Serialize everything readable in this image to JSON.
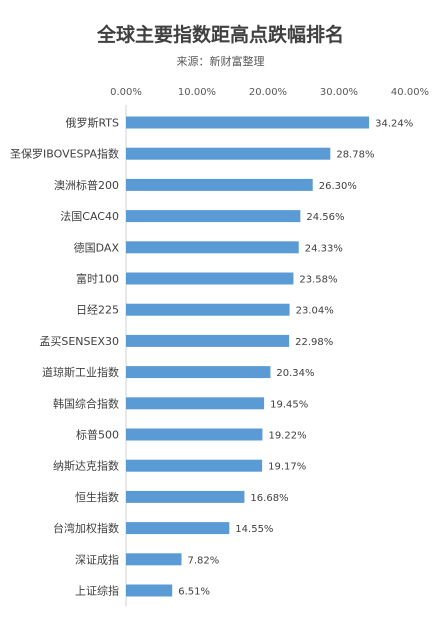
{
  "chart_data": {
    "type": "bar",
    "orientation": "horizontal",
    "title": "全球主要指数距高点跌幅排名",
    "subtitle": "来源：新财富整理",
    "x_axis_position": "top",
    "xlim": [
      0,
      40
    ],
    "xticks": [
      "0.00%",
      "10.00%",
      "20.00%",
      "30.00%",
      "40.00%"
    ],
    "bar_color": "#5b9bd5",
    "categories": [
      "俄罗斯RTS",
      "圣保罗IBOVESPA指数",
      "澳洲标普200",
      "法国CAC40",
      "德国DAX",
      "富时100",
      "日经225",
      "孟买SENSEX30",
      "道琼斯工业指数",
      "韩国综合指数",
      "标普500",
      "纳斯达克指数",
      "恒生指数",
      "台湾加权指数",
      "深证成指",
      "上证综指"
    ],
    "values": [
      34.24,
      28.78,
      26.3,
      24.56,
      24.33,
      23.58,
      23.04,
      22.98,
      20.34,
      19.45,
      19.22,
      19.17,
      16.68,
      14.55,
      7.82,
      6.51
    ],
    "value_labels": [
      "34.24%",
      "28.78%",
      "26.30%",
      "24.56%",
      "24.33%",
      "23.58%",
      "23.04%",
      "22.98%",
      "20.34%",
      "19.45%",
      "19.22%",
      "19.17%",
      "16.68%",
      "14.55%",
      "7.82%",
      "6.51%"
    ]
  }
}
